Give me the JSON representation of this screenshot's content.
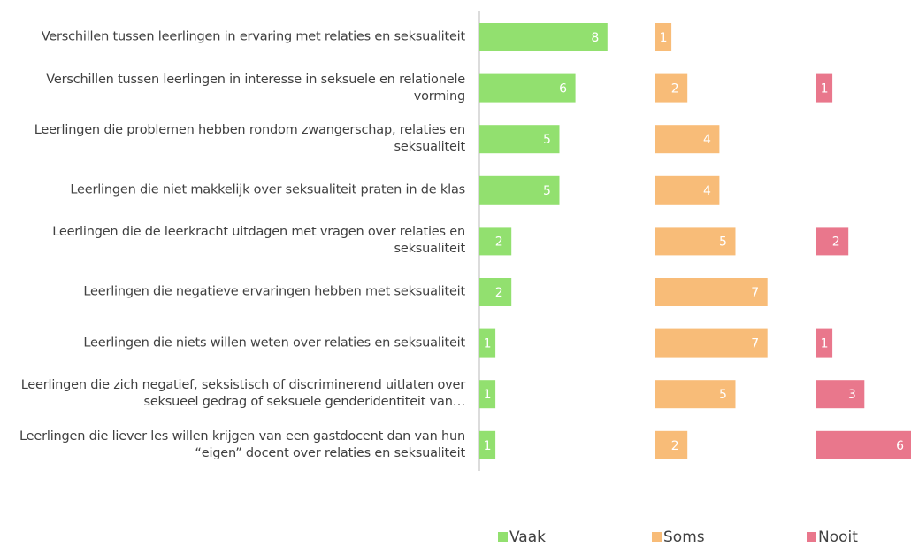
{
  "chart_data": {
    "type": "bar",
    "orientation": "horizontal",
    "layout": "panels",
    "categories": [
      "Verschillen tussen leerlingen in ervaring met relaties en seksualiteit",
      "Verschillen tussen leerlingen in interesse in seksuele en relationele vorming",
      "Leerlingen die problemen hebben rondom zwangerschap, relaties en seksualiteit",
      "Leerlingen die niet makkelijk over seksualiteit praten in de klas",
      "Leerlingen die de leerkracht uitdagen met vragen over relaties en seksualiteit",
      "Leerlingen die negatieve ervaringen hebben met seksualiteit",
      "Leerlingen die niets willen weten over relaties en seksualiteit",
      "Leerlingen die zich negatief, seksistisch of discriminerend uitlaten over seksueel gedrag of seksuele genderidentiteit van…",
      "Leerlingen die liever les willen krijgen van een gastdocent dan van hun “eigen” docent over relaties en seksualiteit"
    ],
    "series": [
      {
        "name": "Vaak",
        "color": "#92e06f",
        "values": [
          8,
          6,
          5,
          5,
          2,
          2,
          1,
          1,
          1
        ]
      },
      {
        "name": "Soms",
        "color": "#f8bc78",
        "values": [
          1,
          2,
          4,
          4,
          5,
          7,
          7,
          5,
          2
        ]
      },
      {
        "name": "Nooit",
        "color": "#e9778c",
        "values": [
          null,
          1,
          null,
          null,
          2,
          null,
          1,
          3,
          6
        ]
      }
    ],
    "legend": "bottom"
  }
}
